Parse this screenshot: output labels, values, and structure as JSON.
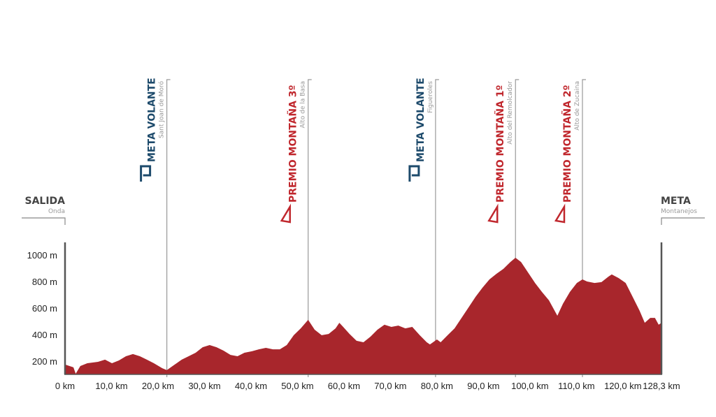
{
  "chart_data": {
    "type": "area",
    "xlabel": "",
    "ylabel": "",
    "xlim": [
      0,
      128.3
    ],
    "ylim": [
      100,
      1100
    ],
    "grid": false,
    "fill_color": "#a8262c",
    "x_ticks": [
      "0 km",
      "10,0 km",
      "20,0 km",
      "30,0 km",
      "40,0 km",
      "50,0 km",
      "60,0 km",
      "70,0 km",
      "80,0 km",
      "90,0 km",
      "100,0 km",
      "110,0 km",
      "120,0 km",
      "128,3 km"
    ],
    "x_tick_values": [
      0,
      10,
      20,
      30,
      40,
      50,
      60,
      70,
      80,
      90,
      100,
      110,
      120,
      128.3
    ],
    "y_ticks": [
      "200 m",
      "400 m",
      "600 m",
      "800 m",
      "1000 m"
    ],
    "y_tick_values": [
      200,
      400,
      600,
      800,
      1000
    ],
    "profile": {
      "km": [
        0,
        1.8,
        2.3,
        3.3,
        4.8,
        7.1,
        8.6,
        10.1,
        11.6,
        13.1,
        14.6,
        16.1,
        17.6,
        19.1,
        20.9,
        21.9,
        23.6,
        25.1,
        26.6,
        28.1,
        29.6,
        31.1,
        32.6,
        34.1,
        35.6,
        37.1,
        38.6,
        40.2,
        41.7,
        43.2,
        44.7,
        46.2,
        47.7,
        49.2,
        50.7,
        52.3,
        53.7,
        55.2,
        56.7,
        58.2,
        59.0,
        59.7,
        61.2,
        62.7,
        64.2,
        65.7,
        67.2,
        68.7,
        70.2,
        71.7,
        73.2,
        74.7,
        76.3,
        77.8,
        78.5,
        80.0,
        80.8,
        82.3,
        83.8,
        85.3,
        86.8,
        88.3,
        89.8,
        91.3,
        92.8,
        94.3,
        95.8,
        96.9,
        98.1,
        99.6,
        101.1,
        102.6,
        104.1,
        105.9,
        107.1,
        108.6,
        110.1,
        111.3,
        112.3,
        113.9,
        115.4,
        116.9,
        117.6,
        119.1,
        120.6,
        122.1,
        123.6,
        124.7,
        125.9,
        126.9,
        127.7,
        128.3
      ],
      "elevation_m": [
        174,
        153,
        105,
        163,
        184,
        195,
        211,
        184,
        205,
        237,
        253,
        237,
        211,
        184,
        147,
        132,
        174,
        211,
        237,
        263,
        305,
        321,
        305,
        279,
        247,
        237,
        263,
        274,
        289,
        300,
        289,
        289,
        321,
        395,
        447,
        511,
        437,
        395,
        405,
        447,
        489,
        463,
        405,
        353,
        342,
        384,
        437,
        474,
        458,
        468,
        447,
        458,
        395,
        342,
        326,
        363,
        342,
        395,
        447,
        526,
        605,
        684,
        753,
        816,
        858,
        895,
        947,
        979,
        947,
        868,
        789,
        721,
        658,
        542,
        632,
        721,
        789,
        816,
        800,
        789,
        795,
        837,
        853,
        826,
        789,
        684,
        579,
        489,
        526,
        526,
        474,
        489
      ]
    },
    "start": {
      "title": "SALIDA",
      "place": "Onda"
    },
    "finish": {
      "title": "META",
      "place": "Montanejos"
    },
    "markers": [
      {
        "km": 21.9,
        "type": "sprint",
        "icon": "sprint-p-icon",
        "title": "META VOLANTE",
        "place": "Sant Joan de Moró",
        "color": "#1d4a6b"
      },
      {
        "km": 52.3,
        "type": "mountain",
        "icon": "triangle-icon",
        "title": "PREMIO MONTAÑA 3º",
        "place": "Alto de la Basa",
        "color": "#c0272d"
      },
      {
        "km": 79.7,
        "type": "sprint",
        "icon": "sprint-p-icon",
        "title": "META VOLANTE",
        "place": "Figueroles",
        "color": "#1d4a6b"
      },
      {
        "km": 96.9,
        "type": "mountain",
        "icon": "triangle-icon",
        "title": "PREMIO MONTAÑA 1º",
        "place": "Alto del Remolcador",
        "color": "#c0272d"
      },
      {
        "km": 111.3,
        "type": "mountain",
        "icon": "triangle-icon",
        "title": "PREMIO MONTAÑA 2º",
        "place": "Alto de Zucaina",
        "color": "#c0272d"
      }
    ]
  }
}
